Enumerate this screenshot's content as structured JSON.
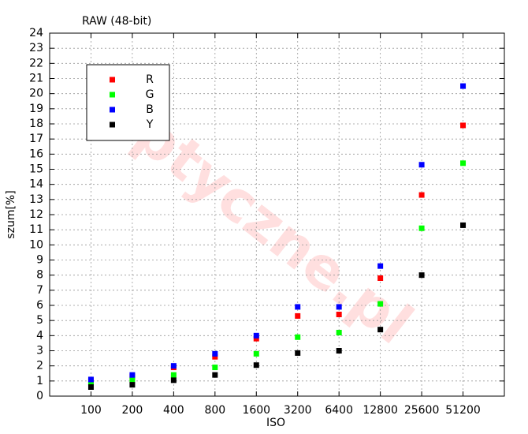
{
  "chart_data": {
    "type": "scatter",
    "title": "RAW (48-bit)",
    "x_label": "ISO",
    "y_label": "szum[%]",
    "watermark": "Optyczne.pl",
    "categories": [
      "100",
      "200",
      "400",
      "800",
      "1600",
      "3200",
      "6400",
      "12800",
      "25600",
      "51200"
    ],
    "series": [
      {
        "name": "R",
        "color": "#ff0000",
        "values": [
          1.0,
          1.3,
          1.9,
          2.6,
          3.8,
          5.3,
          5.4,
          7.8,
          13.3,
          17.9
        ]
      },
      {
        "name": "G",
        "color": "#00ff00",
        "values": [
          0.9,
          1.1,
          1.4,
          1.9,
          2.8,
          3.9,
          4.2,
          6.1,
          11.1,
          15.4
        ]
      },
      {
        "name": "B",
        "color": "#0000ff",
        "values": [
          1.1,
          1.4,
          2.0,
          2.8,
          4.0,
          5.9,
          5.9,
          8.6,
          15.3,
          20.5
        ]
      },
      {
        "name": "Y",
        "color": "#000000",
        "values": [
          0.6,
          0.75,
          1.05,
          1.4,
          2.05,
          2.85,
          3.0,
          4.4,
          8.0,
          11.3
        ]
      }
    ],
    "ylim": [
      0,
      24
    ],
    "yticks": [
      0,
      1,
      2,
      3,
      4,
      5,
      6,
      7,
      8,
      9,
      10,
      11,
      12,
      13,
      14,
      15,
      16,
      17,
      18,
      19,
      20,
      21,
      22,
      23,
      24
    ],
    "grid": true,
    "legend": "upper left"
  }
}
